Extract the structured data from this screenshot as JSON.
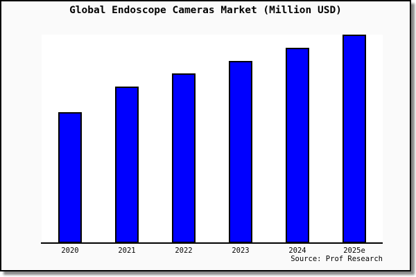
{
  "title": "Global Endoscope Cameras Market (Million USD)",
  "source_note": "Source: Prof Research",
  "colors": {
    "bar_fill": "#0000ff",
    "bar_border": "#000000",
    "plot_background": "#ffffff",
    "card_background": "#fafafa",
    "frame": "#000000",
    "shadow": "#8a8a8a",
    "text": "#000000"
  },
  "chart_data": {
    "type": "bar",
    "title": "Global Endoscope Cameras Market (Million USD)",
    "categories": [
      "2020",
      "2021",
      "2022",
      "2023",
      "2024",
      "2025e"
    ],
    "values_relative": [
      62.8,
      75.1,
      81.4,
      87.4,
      93.7,
      100
    ],
    "value_note": "no y-axis scale shown in image; values are relative bar heights with 2025e = 100",
    "xlabel": "",
    "ylabel": "",
    "ylim": [
      0,
      100
    ],
    "yaxis_visible": false,
    "gridlines": false,
    "legend": "none",
    "bar_color": "#0000ff",
    "source": "Source: Prof Research"
  }
}
